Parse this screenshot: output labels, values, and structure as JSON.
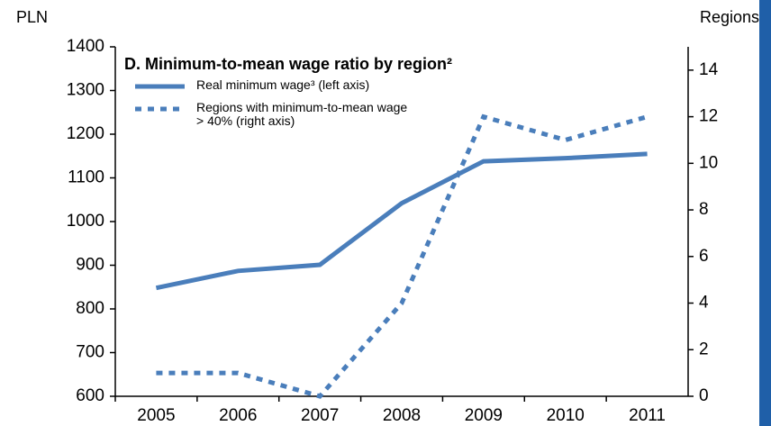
{
  "chart_data": {
    "type": "line",
    "title": "D. Minimum-to-mean wage ratio by region²",
    "y_axis_label": "PLN",
    "y2_axis_label": "Regions",
    "categories": [
      "2005",
      "2006",
      "2007",
      "2008",
      "2009",
      "2010",
      "2011"
    ],
    "series": [
      {
        "name": "Real minimum wage³ (left axis)",
        "color": "#4a7ebb",
        "style": "solid",
        "values": [
          848,
          887,
          901,
          1042,
          1138,
          1145,
          1155
        ]
      },
      {
        "name": "Regions with minimum-to-mean wage > 40% (right axis)",
        "color": "#4a7ebb",
        "style": "dotted",
        "axis": "y2",
        "values": [
          1,
          1,
          0,
          4,
          12,
          11,
          12
        ]
      }
    ],
    "ylim": [
      600,
      1400
    ],
    "yticks": [
      600,
      700,
      800,
      900,
      1000,
      1100,
      1200,
      1300,
      1400
    ],
    "y2lim": [
      0,
      15
    ],
    "y2ticks": [
      0,
      2,
      4,
      6,
      8,
      10,
      12,
      14
    ]
  }
}
